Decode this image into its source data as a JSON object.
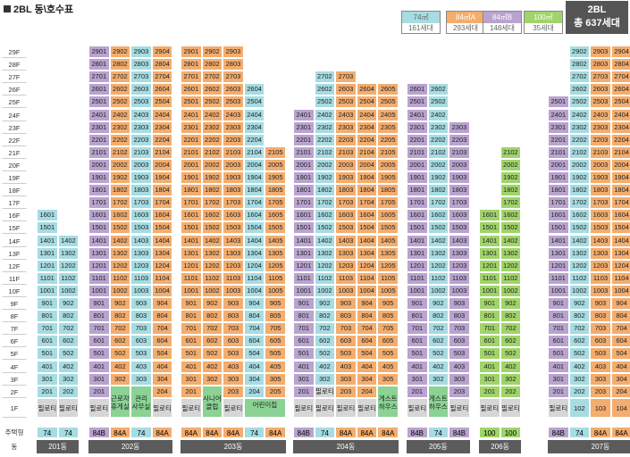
{
  "title": "2BL 동\\호수표",
  "total": {
    "line1": "2BL",
    "line2": "총 637세대"
  },
  "legend": [
    {
      "type": "74㎡",
      "count": "161세대",
      "color": "#a6dce2",
      "text_color": "#666666"
    },
    {
      "type": "84㎡A",
      "count": "293세대",
      "color": "#f3ad6e",
      "text_color": "#ffffff"
    },
    {
      "type": "84㎡B",
      "count": "148세대",
      "color": "#b9a3cf",
      "text_color": "#ffffff"
    },
    {
      "type": "100㎡",
      "count": "35세대",
      "color": "#a0d46a",
      "text_color": "#ffffff"
    }
  ],
  "row_labels": {
    "type": "주택형",
    "building": "동"
  },
  "pilotis_label": "필로티",
  "floors": [
    "29F",
    "28F",
    "27F",
    "26F",
    "25F",
    "24F",
    "23F",
    "22F",
    "21F",
    "20F",
    "19F",
    "18F",
    "17F",
    "16F",
    "15F",
    "14F",
    "13F",
    "12F",
    "11F",
    "10F",
    "9F",
    "8F",
    "7F",
    "6F",
    "5F",
    "4F",
    "3F",
    "2F",
    "1F"
  ],
  "buildings": [
    {
      "name": "201동",
      "cols": [
        {
          "line": 1,
          "type": "74",
          "top": 16,
          "start": 2,
          "first": "p"
        },
        {
          "line": 2,
          "type": "74",
          "top": 14,
          "start": 2,
          "first": "p"
        }
      ]
    },
    {
      "name": "202동",
      "cols": [
        {
          "line": 1,
          "type": "84B",
          "top": 29,
          "start": 2,
          "first": "p"
        },
        {
          "line": 2,
          "type": "84A",
          "top": 29,
          "start": 3,
          "first": "f"
        },
        {
          "line": 3,
          "type": "74",
          "top": 29,
          "start": 3,
          "first": "f"
        },
        {
          "line": 4,
          "type": "84A",
          "top": 29,
          "start": 2,
          "first": "p"
        }
      ],
      "facilities": [
        {
          "from": 1,
          "to": 1,
          "label": "근로자 휴게실"
        },
        {
          "from": 2,
          "to": 2,
          "label": "관리 사무실"
        }
      ]
    },
    {
      "name": "203동",
      "cols": [
        {
          "line": 1,
          "type": "84A",
          "top": 29,
          "start": 2,
          "first": "p"
        },
        {
          "line": 2,
          "type": "84A",
          "top": 29,
          "start": 3,
          "first": "f"
        },
        {
          "line": 3,
          "type": "84A",
          "top": 29,
          "start": 2,
          "first": "p"
        },
        {
          "line": 4,
          "type": "74",
          "top": 26,
          "start": 2,
          "first": "f"
        },
        {
          "line": 5,
          "type": "84A",
          "top": 21,
          "start": 2,
          "first": "f"
        }
      ],
      "facilities": [
        {
          "from": 1,
          "to": 1,
          "label": "시니어 클럽"
        },
        {
          "from": 3,
          "to": 4,
          "label": "어린이집"
        }
      ]
    },
    {
      "name": "204동",
      "cols": [
        {
          "line": 1,
          "type": "84B",
          "top": 24,
          "start": 2,
          "first": "p"
        },
        {
          "line": 2,
          "type": "74",
          "top": 27,
          "start": 3,
          "first": "p"
        },
        {
          "line": 3,
          "type": "84A",
          "top": 27,
          "start": 2,
          "first": "p"
        },
        {
          "line": 4,
          "type": "84A",
          "top": 26,
          "start": 2,
          "first": "p"
        },
        {
          "line": 5,
          "type": "84A",
          "top": 26,
          "start": 3,
          "first": "f"
        }
      ],
      "facilities": [
        {
          "from": 4,
          "to": 4,
          "label": "게스트 하우스"
        }
      ]
    },
    {
      "name": "205동",
      "cols": [
        {
          "line": 1,
          "type": "84B",
          "top": 26,
          "start": 2,
          "first": "p"
        },
        {
          "line": 2,
          "type": "74",
          "top": 26,
          "start": 3,
          "first": "f"
        },
        {
          "line": 3,
          "type": "84B",
          "top": 23,
          "start": 2,
          "first": "p"
        }
      ],
      "facilities": [
        {
          "from": 1,
          "to": 1,
          "label": "게스트 하우스"
        }
      ]
    },
    {
      "name": "206동",
      "cols": [
        {
          "line": 1,
          "type": "100",
          "top": 16,
          "start": 2,
          "first": "p"
        },
        {
          "line": 2,
          "type": "100",
          "top": 21,
          "start": 2,
          "first": "p"
        }
      ]
    },
    {
      "name": "207동",
      "cols": [
        {
          "line": 1,
          "type": "84B",
          "top": 25,
          "start": 2,
          "first": "p"
        },
        {
          "line": 2,
          "type": "74",
          "top": 29,
          "start": 1,
          "first": "u"
        },
        {
          "line": 3,
          "type": "84A",
          "top": 29,
          "start": 1,
          "first": "u"
        },
        {
          "line": 4,
          "type": "84A",
          "top": 29,
          "start": 1,
          "first": "u"
        },
        {
          "line": 5,
          "type": "84B",
          "top": 29,
          "start": 2,
          "first": "p"
        }
      ]
    }
  ]
}
